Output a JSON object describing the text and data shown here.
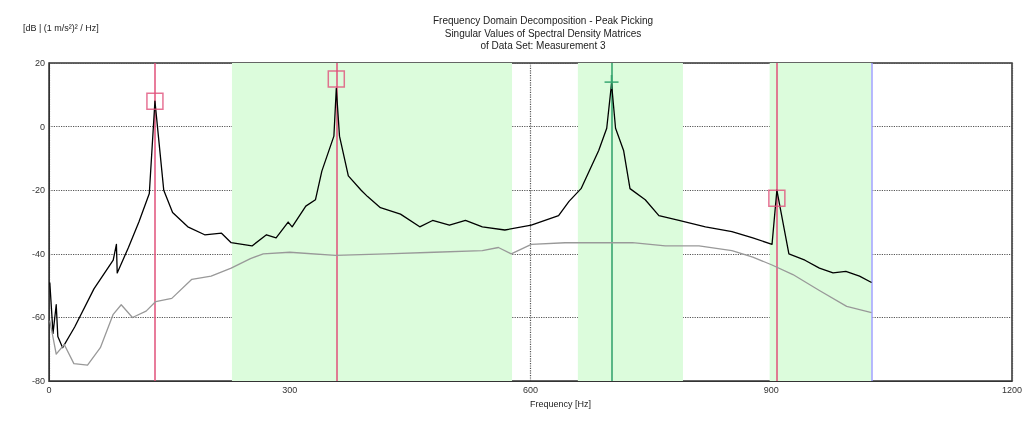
{
  "chart_data": {
    "type": "line",
    "title": "Frequency Domain Decomposition - Peak Picking",
    "subtitle": "Singular Values of Spectral Density Matrices\nof Data Set: Measurement 3",
    "xlabel": "Frequency [Hz]",
    "ylabel": "[dB | (1 m/s²)² / Hz]",
    "xlim": [
      0,
      1200
    ],
    "xticks": [
      0,
      300,
      600,
      900,
      1200
    ],
    "ylim": [
      -80,
      20
    ],
    "yticks": [
      -80,
      -60,
      -40,
      -20,
      0,
      20
    ],
    "grid": true,
    "line_style": "solid",
    "series": [
      {
        "color": "#000000",
        "marker": "none",
        "x": [
          1,
          5,
          9,
          11,
          17,
          32,
          56,
          80,
          84,
          85,
          99,
          112,
          125,
          132,
          143,
          154,
          173,
          194,
          215,
          227,
          253,
          271,
          283,
          298,
          303,
          320,
          332,
          340,
          355,
          358,
          362,
          373,
          389,
          397,
          413,
          438,
          462,
          478,
          499,
          519,
          540,
          568,
          601,
          635,
          648,
          663,
          685,
          695,
          701,
          706,
          716,
          724,
          743,
          760,
          785,
          818,
          851,
          877,
          901,
          907,
          922,
          942,
          960,
          977,
          993,
          1010,
          1025
        ],
        "values": [
          -49,
          -65,
          -56,
          -66,
          -69.5,
          -63,
          -51,
          -42,
          -37,
          -46,
          -38,
          -30,
          -21,
          8,
          -20,
          -27,
          -31.5,
          -34,
          -33.5,
          -36.5,
          -37.5,
          -34,
          -35,
          -30,
          -31.5,
          -25,
          -23,
          -14,
          -3,
          12,
          -3,
          -15.5,
          -20,
          -22,
          -25.5,
          -27.5,
          -31.5,
          -29.5,
          -31,
          -29.5,
          -31.5,
          -32.5,
          -31,
          -28,
          -23.5,
          -19.5,
          -7.5,
          -0.5,
          13.5,
          -0.5,
          -7.5,
          -19.5,
          -23,
          -28,
          -29.5,
          -31.5,
          -33,
          -35,
          -37,
          -20,
          -40,
          -42,
          -44.5,
          -46,
          -45.5,
          -47,
          -49
        ]
      },
      {
        "color": "#999999",
        "marker": "none",
        "x": [
          1,
          9,
          19,
          31,
          48,
          64,
          80,
          90,
          104,
          121,
          133,
          153,
          178,
          202,
          227,
          251,
          267,
          300,
          357,
          420,
          480,
          540,
          560,
          576,
          601,
          643,
          677,
          727,
          768,
          810,
          851,
          877,
          901,
          927,
          960,
          994,
          1025
        ],
        "values": [
          -61,
          -71.5,
          -68.5,
          -74.5,
          -75,
          -69.5,
          -59,
          -56,
          -60,
          -58,
          -55,
          -54,
          -48,
          -47,
          -44.5,
          -41.5,
          -40,
          -39.5,
          -40.5,
          -40,
          -39.5,
          -39,
          -38,
          -40,
          -37,
          -36.5,
          -36.5,
          -36.5,
          -37.5,
          -37.5,
          -39,
          -41,
          -43.5,
          -46.5,
          -51.5,
          -56.5,
          -58.5
        ]
      },
      {
        "type": "scatter",
        "color": "#e0507a",
        "marker": "square",
        "x": [
          132,
          358,
          907
        ],
        "values": [
          8,
          15,
          -22.5
        ]
      },
      {
        "type": "scatter",
        "color": "#2ea06a",
        "marker": "cross",
        "x": [
          701
        ],
        "values": [
          14
        ]
      }
    ],
    "bands": [
      {
        "axis": "x",
        "from": 228,
        "to": 577,
        "color": "#dcfcdc"
      },
      {
        "axis": "x",
        "from": 659,
        "to": 790,
        "color": "#dcfcdc"
      },
      {
        "axis": "x",
        "from": 898,
        "to": 1025,
        "color": "#dcfcdc"
      }
    ],
    "ref_lines": [
      {
        "axis": "x",
        "value": 132,
        "color": "#e0507a"
      },
      {
        "axis": "x",
        "value": 358,
        "color": "#e0507a"
      },
      {
        "axis": "x",
        "value": 701,
        "color": "#2ea06a"
      },
      {
        "axis": "x",
        "value": 907,
        "color": "#e0507a"
      },
      {
        "axis": "x",
        "value": 1025,
        "color": "#a0a0ff"
      }
    ]
  }
}
